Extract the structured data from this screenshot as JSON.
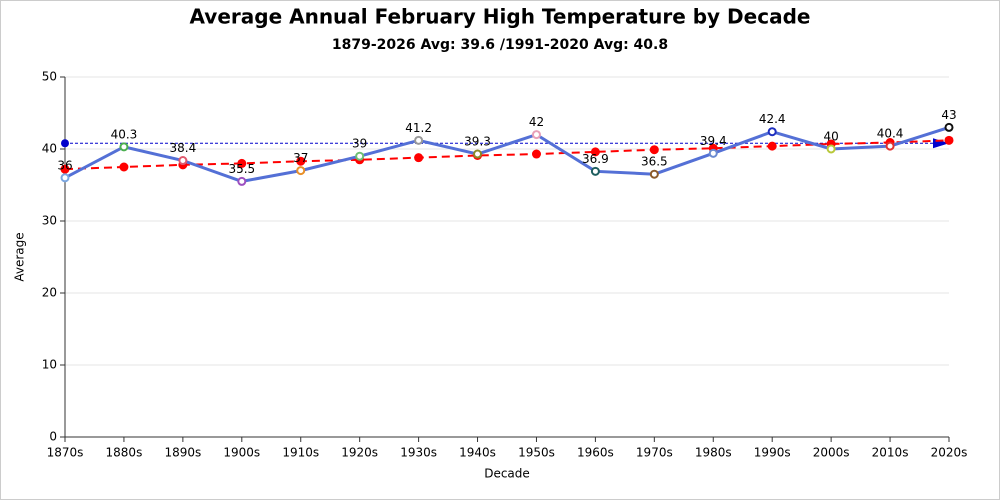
{
  "chart_data": {
    "type": "line",
    "title": "Average Annual February High Temperature by Decade",
    "subtitle": "1879-2026 Avg: 39.6 /1991-2020 Avg: 40.8",
    "x_label": "Decade",
    "y_label": "Average",
    "categories": [
      "1870s",
      "1880s",
      "1890s",
      "1900s",
      "1910s",
      "1920s",
      "1930s",
      "1940s",
      "1950s",
      "1960s",
      "1970s",
      "1980s",
      "1990s",
      "2000s",
      "2010s",
      "2020s"
    ],
    "series": [
      {
        "color": "#5470d6",
        "style": "solid",
        "data_labels": true,
        "values": [
          36,
          40.3,
          38.4,
          35.5,
          37,
          39,
          41.2,
          39.3,
          42,
          36.9,
          36.5,
          39.4,
          42.4,
          40,
          40.4,
          43
        ],
        "marker_colors": [
          "#7aa6e0",
          "#4caf50",
          "#e05a6e",
          "#9c4fc0",
          "#e8902a",
          "#6fbf73",
          "#999999",
          "#8a8a2a",
          "#e8a0b8",
          "#1f5f5f",
          "#8b5a2b",
          "#6a8ad0",
          "#1f2fbf",
          "#b8c83a",
          "#e03030",
          "#111111"
        ]
      },
      {
        "color": "#ff0000",
        "style": "dashed",
        "data_labels": false,
        "marker_colors": null,
        "values": [
          37.2,
          37.5,
          37.8,
          38.0,
          38.3,
          38.5,
          38.8,
          39.1,
          39.3,
          39.6,
          39.9,
          40.1,
          40.4,
          40.7,
          40.9,
          41.2
        ]
      }
    ],
    "reference_line": {
      "value": 40.8,
      "color": "#0000cc"
    },
    "ylim": [
      0,
      50
    ],
    "yticks": [
      0,
      10,
      20,
      30,
      40,
      50
    ],
    "grid": true
  }
}
